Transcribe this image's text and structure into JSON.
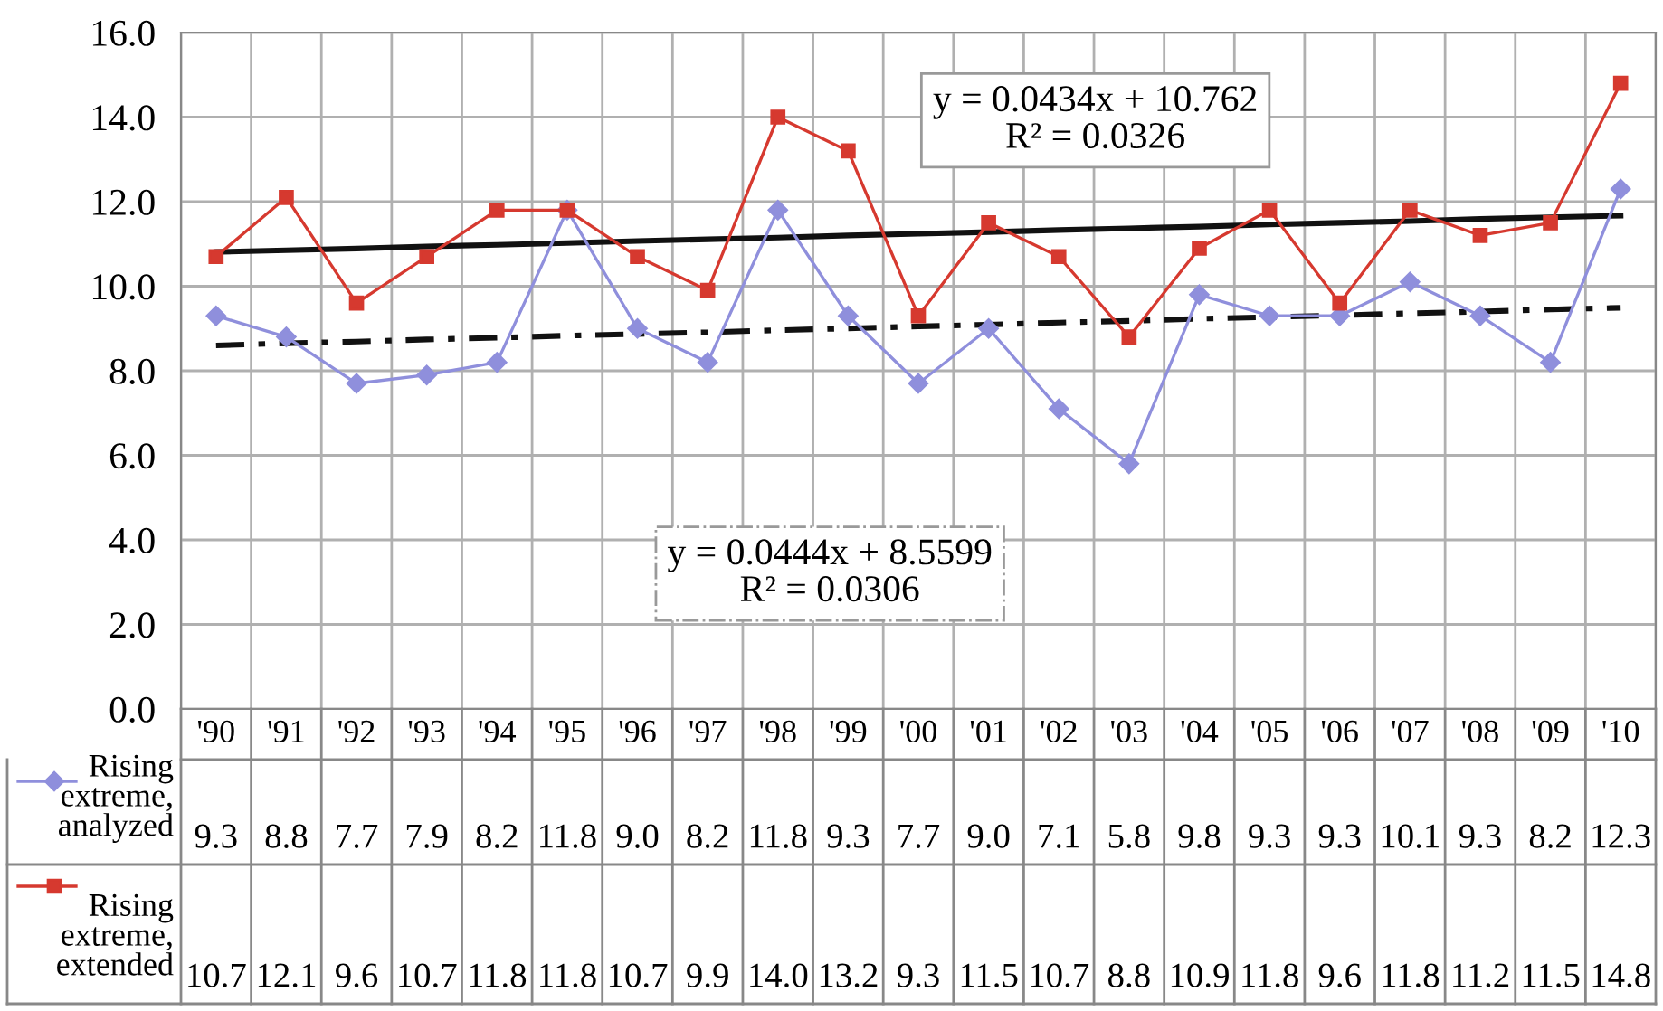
{
  "chart_data": {
    "type": "line",
    "categories": [
      "'90",
      "'91",
      "'92",
      "'93",
      "'94",
      "'95",
      "'96",
      "'97",
      "'98",
      "'99",
      "'00",
      "'01",
      "'02",
      "'03",
      "'04",
      "'05",
      "'06",
      "'07",
      "'08",
      "'09",
      "'10"
    ],
    "series": [
      {
        "name": "Rising extreme, analyzed",
        "color": "#8f8fdc",
        "marker": "diamond",
        "values": [
          9.3,
          8.8,
          7.7,
          7.9,
          8.2,
          11.8,
          9.0,
          8.2,
          11.8,
          9.3,
          7.7,
          9.0,
          7.1,
          5.8,
          9.8,
          9.3,
          9.3,
          10.1,
          9.3,
          8.2,
          12.3
        ],
        "value_labels": [
          "9.3",
          "8.8",
          "7.7",
          "7.9",
          "8.2",
          "11.8",
          "9.0",
          "8.2",
          "11.8",
          "9.3",
          "7.7",
          "9.0",
          "7.1",
          "5.8",
          "9.8",
          "9.3",
          "9.3",
          "10.1",
          "9.3",
          "8.2",
          "12.3"
        ]
      },
      {
        "name": "Rising extreme, extended",
        "color": "#d6392f",
        "marker": "square",
        "values": [
          10.7,
          12.1,
          9.6,
          10.7,
          11.8,
          11.8,
          10.7,
          9.9,
          14.0,
          13.2,
          9.3,
          11.5,
          10.7,
          8.8,
          10.9,
          11.8,
          9.6,
          11.8,
          11.2,
          11.5,
          14.8
        ],
        "value_labels": [
          "10.7",
          "12.1",
          "9.6",
          "10.7",
          "11.8",
          "11.8",
          "10.7",
          "9.9",
          "14.0",
          "13.2",
          "9.3",
          "11.5",
          "10.7",
          "8.8",
          "10.9",
          "11.8",
          "9.6",
          "11.8",
          "11.2",
          "11.5",
          "14.8"
        ]
      },
      {
        "color": "#111111",
        "marker": "none",
        "line_style": "solid",
        "values": [
          10.81,
          10.85,
          10.89,
          10.94,
          10.98,
          11.02,
          11.07,
          11.11,
          11.15,
          11.2,
          11.24,
          11.28,
          11.33,
          11.37,
          11.41,
          11.46,
          11.5,
          11.54,
          11.59,
          11.63,
          11.67
        ]
      },
      {
        "color": "#111111",
        "marker": "none",
        "line_style": "dashdot",
        "values": [
          8.6,
          8.65,
          8.69,
          8.74,
          8.78,
          8.83,
          8.87,
          8.91,
          8.96,
          9.0,
          9.05,
          9.09,
          9.14,
          9.18,
          9.23,
          9.27,
          9.31,
          9.36,
          9.4,
          9.45,
          9.49
        ]
      }
    ],
    "ylim": [
      0,
      16
    ],
    "yticks": [
      {
        "value": 0,
        "label": "0.0"
      },
      {
        "value": 2,
        "label": "2.0"
      },
      {
        "value": 4,
        "label": "4.0"
      },
      {
        "value": 6,
        "label": "6.0"
      },
      {
        "value": 8,
        "label": "8.0"
      },
      {
        "value": 10,
        "label": "10.0"
      },
      {
        "value": 12,
        "label": "12.0"
      },
      {
        "value": 14,
        "label": "14.0"
      },
      {
        "value": 16,
        "label": "16.0"
      }
    ],
    "grid": true,
    "legend": "bottom left",
    "annotations": [
      "y = 0.0434x + 10.762\nR² = 0.0326",
      "y = 0.0444x + 8.5599\nR² = 0.0306"
    ]
  }
}
